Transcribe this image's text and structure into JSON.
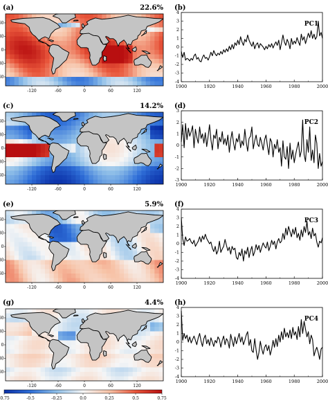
{
  "colorbar": {
    "ticks": [
      "-0.75",
      "-0.5",
      "-0.25",
      "0.0",
      "0.25",
      "0.5",
      "0.75"
    ],
    "colors": [
      "#0a30a8",
      "#2f6fd8",
      "#8fbfe8",
      "#f6f6f6",
      "#f7c2a6",
      "#e8553a",
      "#b80f10"
    ]
  },
  "map_axis": {
    "lon_ticks": [
      "-120",
      "-60",
      "0",
      "60",
      "120"
    ],
    "lat_ticks": [
      "60",
      "30",
      "0",
      "-30",
      "-60"
    ]
  },
  "chart_data": [
    {
      "type": "heatmap",
      "panel": "(a)",
      "title": "22.6%",
      "mean": 0.38
    },
    {
      "type": "line",
      "panel": "(b)",
      "title": "PC1",
      "xlim": [
        1900,
        2000
      ],
      "ylim": [
        -4,
        4
      ],
      "x_ticks": [
        "1900",
        "1920",
        "1940",
        "1960",
        "1980",
        "2000"
      ],
      "y_ticks": [
        "4",
        "3",
        "2",
        "1",
        "0",
        "-1",
        "-2",
        "-3",
        "-4"
      ],
      "x_start": 1900,
      "values": [
        -0.5,
        -1.2,
        -0.6,
        -1.5,
        -1.3,
        -1.4,
        -1.6,
        -1.3,
        -1.5,
        -1.0,
        -0.8,
        -1.4,
        -1.2,
        -1.6,
        -1.7,
        -1.2,
        -0.9,
        -1.3,
        -1.2,
        -1.5,
        -1.1,
        -0.6,
        -1.0,
        -0.4,
        -0.8,
        -1.0,
        -0.7,
        -0.9,
        -0.5,
        -0.8,
        -0.3,
        -0.6,
        -0.2,
        -0.5,
        0.1,
        -0.3,
        0.3,
        -0.2,
        0.5,
        0.2,
        0.8,
        0.3,
        1.2,
        0.6,
        0.2,
        0.9,
        0.6,
        1.4,
        0.8,
        0.4,
        0.1,
        0.6,
        -0.2,
        0.3,
        0.5,
        -0.1,
        0.4,
        0.2,
        0.0,
        -0.3,
        0.1,
        -0.2,
        0.3,
        0.0,
        0.4,
        -0.1,
        0.3,
        0.6,
        0.2,
        0.8,
        -0.3,
        0.5,
        1.4,
        0.6,
        0.2,
        0.9,
        0.5,
        -0.2,
        1.0,
        0.3,
        0.7,
        0.4,
        1.1,
        0.6,
        0.2,
        1.5,
        0.8,
        1.2,
        0.4,
        1.0,
        1.6,
        1.1,
        1.9,
        1.0,
        1.5,
        0.9,
        1.2,
        3.0,
        1.3,
        1.7,
        1.0
      ]
    },
    {
      "type": "heatmap",
      "panel": "(c)",
      "title": "14.2%",
      "mean": -0.1
    },
    {
      "type": "line",
      "panel": "(d)",
      "title": "PC2",
      "xlim": [
        1900,
        2000
      ],
      "ylim": [
        -3,
        3
      ],
      "x_ticks": [
        "1900",
        "1920",
        "1940",
        "1960",
        "1980",
        "2000"
      ],
      "y_ticks": [
        "3",
        "2",
        "1",
        "0",
        "-1",
        "-2",
        "-3"
      ],
      "x_start": 1900,
      "values": [
        0.3,
        1.8,
        -0.2,
        1.9,
        0.5,
        1.5,
        0.8,
        1.2,
        1.7,
        -0.2,
        1.4,
        0.7,
        0.2,
        1.6,
        0.6,
        1.0,
        0.2,
        1.1,
        -0.1,
        0.8,
        1.8,
        0.5,
        -0.4,
        0.9,
        0.6,
        1.4,
        -0.3,
        0.7,
        0.3,
        1.2,
        0.1,
        0.6,
        0.0,
        0.9,
        -0.6,
        0.5,
        1.2,
        0.2,
        -0.4,
        0.6,
        0.3,
        1.0,
        -0.2,
        0.4,
        0.0,
        1.4,
        0.3,
        -0.5,
        0.6,
        0.8,
        1.6,
        -0.3,
        0.4,
        0.9,
        0.1,
        -0.1,
        0.7,
        0.2,
        -0.4,
        0.5,
        0.9,
        0.0,
        -0.8,
        0.6,
        0.3,
        -1.0,
        0.1,
        -0.3,
        0.5,
        -0.6,
        -0.2,
        -1.8,
        0.4,
        -1.0,
        -1.2,
        -0.1,
        -2.0,
        0.2,
        -1.2,
        -0.4,
        -1.5,
        -0.8,
        -0.2,
        0.3,
        -1.0,
        -0.5,
        2.2,
        -0.8,
        -1.4,
        0.5,
        -0.6,
        1.6,
        -1.3,
        -0.4,
        -1.5,
        0.9,
        0.2,
        -2.0,
        -0.7,
        -1.8,
        -1.4
      ]
    },
    {
      "type": "heatmap",
      "panel": "(e)",
      "title": "5.9%",
      "mean": 0.05
    },
    {
      "type": "line",
      "panel": "(f)",
      "title": "PC3",
      "xlim": [
        1900,
        2000
      ],
      "ylim": [
        -4,
        4
      ],
      "x_ticks": [
        "1900",
        "1920",
        "1940",
        "1960",
        "1980",
        "2000"
      ],
      "y_ticks": [
        "4",
        "3",
        "2",
        "1",
        "0",
        "-1",
        "-2",
        "-3",
        "-4"
      ],
      "x_start": 1900,
      "values": [
        3.0,
        0.6,
        -0.2,
        0.8,
        0.3,
        0.4,
        0.6,
        0.2,
        0.0,
        0.4,
        -0.3,
        0.0,
        0.3,
        0.8,
        0.2,
        0.9,
        0.5,
        1.1,
        0.6,
        0.3,
        0.0,
        0.2,
        -0.5,
        -0.9,
        -0.3,
        -1.2,
        -0.8,
        0.3,
        -1.0,
        -0.6,
        -0.3,
        0.5,
        -0.2,
        -0.8,
        -0.4,
        -1.2,
        -0.3,
        -0.7,
        -0.5,
        -1.6,
        -1.8,
        -1.0,
        -1.4,
        -0.6,
        -2.0,
        -0.8,
        -1.2,
        -0.4,
        -1.6,
        -0.8,
        -0.3,
        -1.4,
        -0.9,
        -0.1,
        -0.7,
        -0.2,
        -1.0,
        -0.4,
        0.1,
        -0.3,
        -0.5,
        0.2,
        -0.8,
        -0.3,
        0.4,
        -0.1,
        0.3,
        -0.6,
        0.2,
        0.6,
        0.1,
        0.3,
        1.2,
        0.5,
        1.8,
        1.0,
        2.0,
        1.4,
        0.8,
        1.7,
        1.1,
        1.9,
        0.7,
        1.2,
        0.4,
        1.6,
        0.8,
        2.0,
        1.3,
        2.6,
        1.0,
        1.4,
        0.6,
        1.8,
        0.9,
        1.2,
        0.2,
        -0.4,
        0.3,
        0.1,
        0.7
      ]
    },
    {
      "type": "heatmap",
      "panel": "(g)",
      "title": "4.4%",
      "mean": 0.02
    },
    {
      "type": "line",
      "panel": "(h)",
      "title": "PC4",
      "xlim": [
        1900,
        2000
      ],
      "ylim": [
        -4,
        4
      ],
      "x_ticks": [
        "1900",
        "1920",
        "1940",
        "1960",
        "1980",
        "2000"
      ],
      "y_ticks": [
        "4",
        "3",
        "2",
        "1",
        "0",
        "-1",
        "-2",
        "-3",
        "-4"
      ],
      "x_start": 1900,
      "values": [
        3.6,
        0.2,
        1.0,
        0.4,
        0.8,
        0.0,
        0.6,
        -0.1,
        0.3,
        0.7,
        0.2,
        -0.3,
        0.5,
        1.0,
        0.1,
        -0.5,
        0.4,
        0.8,
        -0.2,
        0.3,
        -0.4,
        0.5,
        0.0,
        -0.5,
        0.2,
        -0.1,
        0.6,
        0.3,
        -0.6,
        0.2,
        0.7,
        -0.3,
        0.4,
        0.1,
        -0.7,
        0.9,
        0.2,
        -0.5,
        0.6,
        -0.2,
        0.4,
        1.0,
        0.0,
        0.6,
        -0.3,
        0.2,
        0.8,
        1.2,
        -0.4,
        0.3,
        -1.0,
        -1.2,
        0.4,
        -0.9,
        -2.0,
        -1.2,
        0.1,
        -0.8,
        -1.4,
        -0.6,
        -0.3,
        -1.0,
        -0.4,
        -1.5,
        -0.8,
        0.2,
        -0.6,
        0.4,
        -0.5,
        0.8,
        0.0,
        1.2,
        0.3,
        1.6,
        0.6,
        1.1,
        0.5,
        1.4,
        0.4,
        1.7,
        0.8,
        1.2,
        0.3,
        1.8,
        0.6,
        2.6,
        1.0,
        2.4,
        1.5,
        0.6,
        1.2,
        -0.2,
        0.8,
        0.3,
        -1.6,
        -1.0,
        -0.6,
        -1.2,
        -2.0,
        -0.8,
        -0.6
      ]
    }
  ]
}
